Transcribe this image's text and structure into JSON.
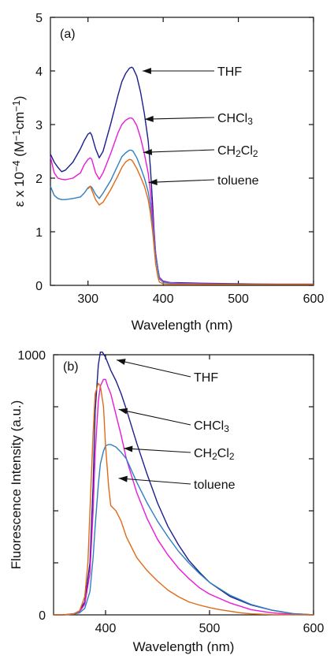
{
  "chart_data": [
    {
      "type": "line",
      "panel_label": "(a)",
      "xlabel": "Wavelength (nm)",
      "ylabel": "ε x 10⁻⁴ (M⁻¹cm⁻¹)",
      "xlim": [
        250,
        600
      ],
      "ylim": [
        0,
        5
      ],
      "x_ticks": [
        300,
        400,
        500,
        600
      ],
      "y_ticks": [
        0,
        1,
        2,
        3,
        4,
        5
      ],
      "grid": false,
      "series": [
        {
          "name": "THF",
          "color": "#1a1f8c",
          "x": [
            250,
            255,
            260,
            265,
            270,
            280,
            290,
            295,
            300,
            303,
            305,
            310,
            315,
            320,
            330,
            340,
            345,
            350,
            355,
            358,
            360,
            365,
            370,
            375,
            380,
            383,
            386,
            388,
            390,
            393,
            395,
            400,
            410,
            420,
            450,
            500,
            550,
            600
          ],
          "y": [
            2.45,
            2.3,
            2.2,
            2.12,
            2.15,
            2.3,
            2.55,
            2.7,
            2.82,
            2.85,
            2.8,
            2.55,
            2.38,
            2.5,
            3.0,
            3.55,
            3.8,
            3.95,
            4.05,
            4.07,
            4.05,
            3.9,
            3.6,
            3.2,
            2.7,
            2.2,
            1.5,
            1.0,
            0.6,
            0.3,
            0.15,
            0.08,
            0.05,
            0.05,
            0.04,
            0.03,
            0.02,
            0.02
          ]
        },
        {
          "name": "CHCl₃",
          "color": "#e81ad8",
          "x": [
            250,
            255,
            260,
            265,
            270,
            280,
            290,
            295,
            300,
            303,
            305,
            310,
            315,
            320,
            330,
            340,
            345,
            350,
            355,
            358,
            360,
            365,
            370,
            375,
            380,
            383,
            386,
            388,
            390,
            393,
            395,
            400,
            410,
            420,
            450,
            500,
            550,
            600
          ],
          "y": [
            2.4,
            2.1,
            2.0,
            1.98,
            1.97,
            2.0,
            2.1,
            2.25,
            2.35,
            2.38,
            2.35,
            2.1,
            1.98,
            2.1,
            2.45,
            2.85,
            3.0,
            3.08,
            3.12,
            3.12,
            3.1,
            2.98,
            2.75,
            2.45,
            2.1,
            1.75,
            1.3,
            0.95,
            0.6,
            0.3,
            0.15,
            0.07,
            0.05,
            0.04,
            0.03,
            0.02,
            0.02,
            0.02
          ]
        },
        {
          "name": "CH₂Cl₂",
          "color": "#2f7fbf",
          "x": [
            250,
            255,
            260,
            265,
            270,
            280,
            290,
            295,
            300,
            303,
            305,
            310,
            315,
            320,
            330,
            340,
            345,
            350,
            355,
            358,
            360,
            365,
            370,
            375,
            380,
            383,
            386,
            388,
            390,
            393,
            395,
            400,
            410,
            420,
            450,
            500,
            550,
            600
          ],
          "y": [
            1.85,
            1.68,
            1.62,
            1.6,
            1.6,
            1.62,
            1.65,
            1.72,
            1.82,
            1.85,
            1.83,
            1.7,
            1.62,
            1.72,
            1.95,
            2.25,
            2.4,
            2.47,
            2.52,
            2.52,
            2.5,
            2.38,
            2.2,
            2.0,
            1.75,
            1.5,
            1.15,
            0.85,
            0.55,
            0.28,
            0.12,
            0.06,
            0.04,
            0.03,
            0.02,
            0.02,
            0.02,
            0.02
          ]
        },
        {
          "name": "toluene",
          "color": "#e06a1a",
          "x": [
            300,
            303,
            305,
            310,
            315,
            320,
            330,
            340,
            345,
            350,
            355,
            358,
            360,
            365,
            370,
            375,
            380,
            383,
            386,
            388,
            390,
            393,
            395,
            400,
            410,
            420,
            450,
            500,
            550,
            600
          ],
          "y": [
            1.8,
            1.85,
            1.78,
            1.6,
            1.5,
            1.55,
            1.78,
            2.05,
            2.2,
            2.3,
            2.35,
            2.34,
            2.3,
            2.18,
            2.02,
            1.85,
            1.6,
            1.35,
            1.0,
            0.7,
            0.4,
            0.15,
            0.06,
            0.03,
            0.02,
            0.02,
            0.02,
            0.02,
            0.02,
            0.02
          ]
        }
      ],
      "annotations": [
        {
          "text": "THF",
          "series": "THF",
          "arrow_to": [
            362,
            4.0
          ]
        },
        {
          "text": "CHCl₃",
          "series": "CHCl₃",
          "arrow_to": [
            365,
            3.1
          ]
        },
        {
          "text": "CH₂Cl₂",
          "series": "CH₂Cl₂",
          "arrow_to": [
            363,
            2.48
          ]
        },
        {
          "text": "toluene",
          "series": "toluene",
          "arrow_to": [
            370,
            1.92
          ]
        }
      ]
    },
    {
      "type": "line",
      "panel_label": "(b)",
      "xlabel": "Wavelength (nm)",
      "ylabel": "Fluorescence Intensity (a.u.)",
      "xlim": [
        350,
        600
      ],
      "ylim": [
        0,
        1000
      ],
      "x_ticks": [
        400,
        500,
        600
      ],
      "y_ticks": [
        0,
        1000
      ],
      "y_minor_ticks": [
        200,
        400,
        600,
        800
      ],
      "grid": false,
      "series": [
        {
          "name": "THF",
          "color": "#1a1f8c",
          "x": [
            350,
            360,
            370,
            375,
            380,
            385,
            388,
            390,
            393,
            395,
            397,
            400,
            403,
            405,
            410,
            415,
            420,
            430,
            440,
            450,
            460,
            470,
            480,
            490,
            500,
            520,
            540,
            560,
            580,
            600
          ],
          "y": [
            0,
            0,
            5,
            15,
            50,
            200,
            500,
            780,
            960,
            1010,
            1010,
            990,
            960,
            940,
            900,
            850,
            790,
            660,
            540,
            430,
            340,
            270,
            210,
            165,
            125,
            70,
            38,
            18,
            5,
            0
          ]
        },
        {
          "name": "CHCl₃",
          "color": "#e81ad8",
          "x": [
            350,
            360,
            370,
            375,
            380,
            385,
            388,
            390,
            393,
            395,
            398,
            400,
            402,
            405,
            410,
            415,
            420,
            430,
            440,
            450,
            460,
            470,
            480,
            490,
            500,
            520,
            540,
            560,
            580,
            600
          ],
          "y": [
            0,
            0,
            4,
            12,
            40,
            160,
            400,
            620,
            820,
            880,
            905,
            905,
            880,
            850,
            770,
            690,
            600,
            470,
            370,
            290,
            230,
            180,
            140,
            105,
            80,
            45,
            20,
            8,
            2,
            0
          ]
        },
        {
          "name": "CH₂Cl₂",
          "color": "#2f7fbf",
          "x": [
            350,
            360,
            370,
            375,
            380,
            385,
            388,
            390,
            393,
            395,
            398,
            400,
            403,
            405,
            410,
            415,
            420,
            430,
            440,
            450,
            460,
            470,
            480,
            490,
            500,
            520,
            540,
            560,
            580,
            600
          ],
          "y": [
            0,
            0,
            3,
            8,
            25,
            90,
            220,
            340,
            500,
            580,
            630,
            650,
            655,
            655,
            645,
            625,
            600,
            510,
            430,
            360,
            300,
            245,
            200,
            160,
            125,
            75,
            40,
            18,
            5,
            0
          ]
        },
        {
          "name": "toluene",
          "color": "#e06a1a",
          "x": [
            350,
            360,
            370,
            375,
            380,
            383,
            385,
            388,
            390,
            393,
            395,
            398,
            400,
            403,
            405,
            410,
            415,
            420,
            430,
            440,
            450,
            460,
            470,
            480,
            490,
            500,
            510,
            520,
            530,
            540,
            560,
            600
          ],
          "y": [
            0,
            0,
            4,
            15,
            70,
            200,
            400,
            700,
            850,
            890,
            880,
            800,
            650,
            490,
            420,
            400,
            360,
            300,
            220,
            170,
            130,
            95,
            70,
            50,
            38,
            28,
            20,
            14,
            8,
            4,
            1,
            0
          ]
        }
      ],
      "annotations": [
        {
          "text": "THF",
          "series": "THF",
          "arrow_to": [
            403,
            980
          ]
        },
        {
          "text": "CHCl₃",
          "series": "CHCl₃",
          "arrow_to": [
            405,
            790
          ]
        },
        {
          "text": "CH₂Cl₂",
          "series": "CH₂Cl₂",
          "arrow_to": [
            410,
            640
          ]
        },
        {
          "text": "toluene",
          "series": "toluene",
          "arrow_to": [
            405,
            525
          ]
        }
      ]
    }
  ]
}
